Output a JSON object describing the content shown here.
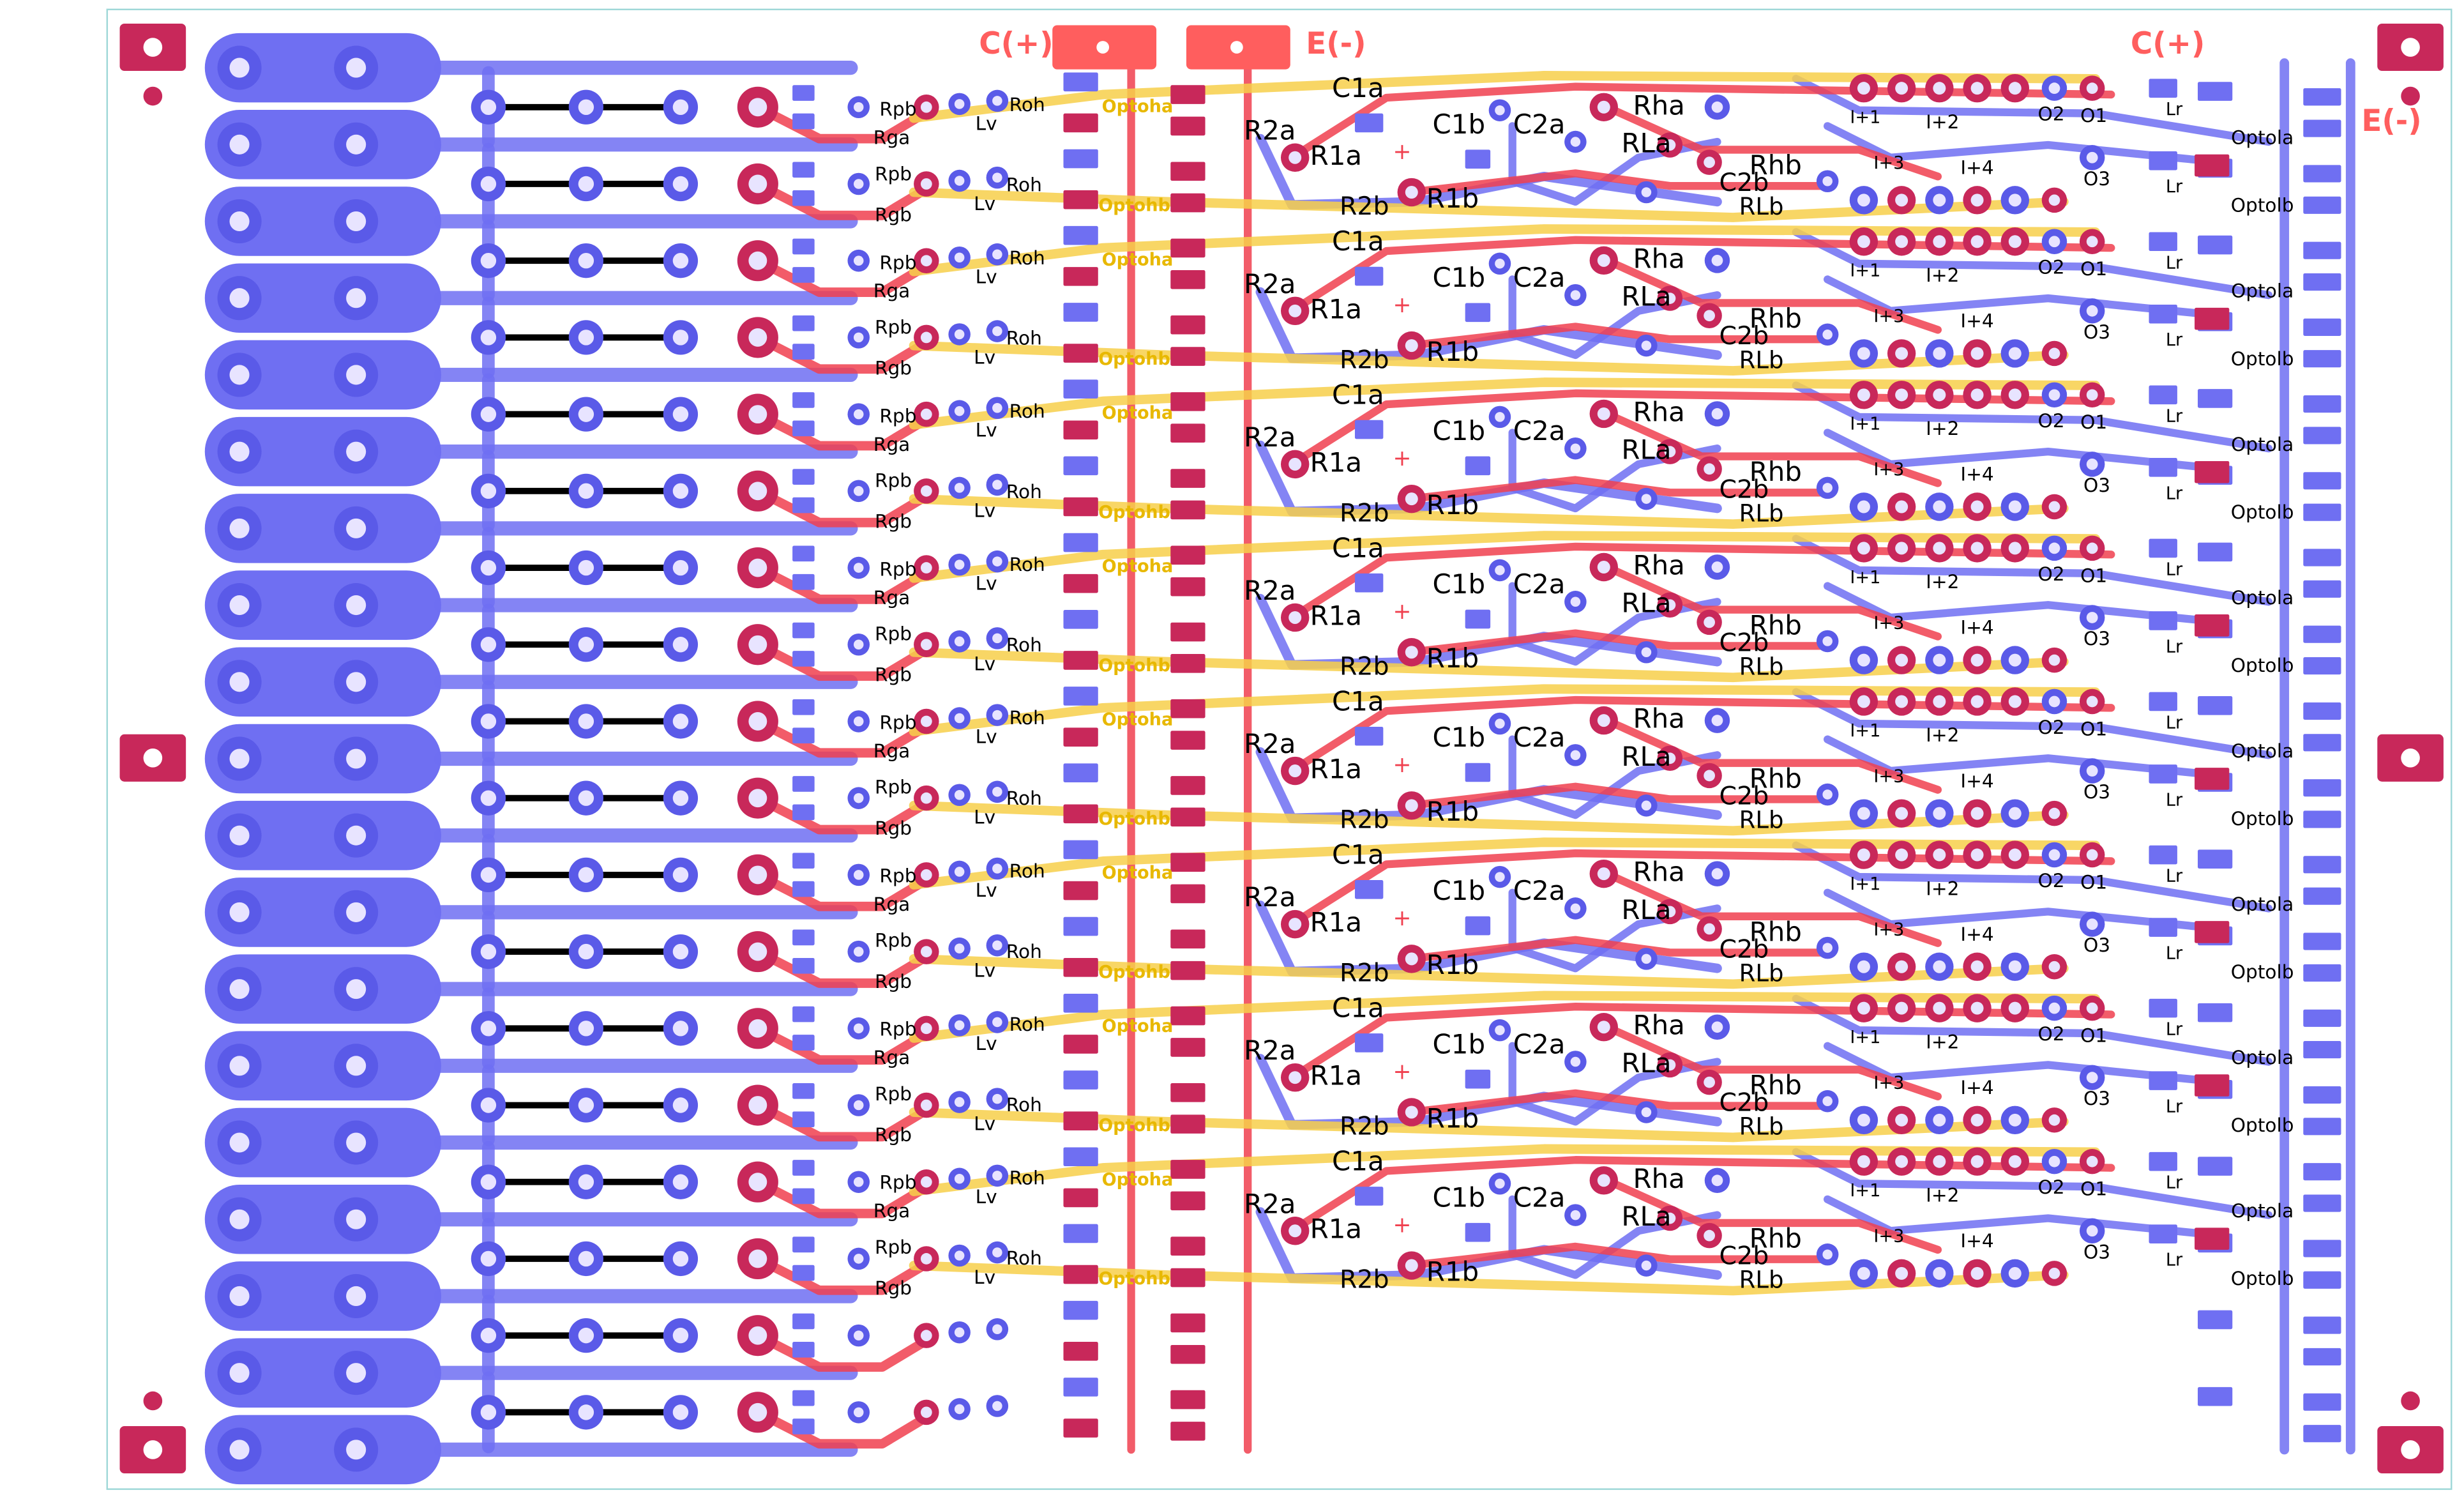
{
  "header": {
    "connector_left": "C(+)",
    "connector_mid": "E(-)",
    "connector_right": "C(+)",
    "connector_far_right": "E(-)"
  },
  "module_labels": {
    "rpb": "Rpb",
    "rga": "Rga",
    "rgb": "Rgb",
    "roh": "Roh",
    "lv": "Lv",
    "optoha": "Optoha",
    "optohb": "Optohb",
    "r2a": "R2a",
    "r1a": "R1a",
    "c1a": "C1a",
    "r2b": "R2b",
    "c1b": "C1b",
    "r1b": "R1b",
    "c2a": "C2a",
    "rha": "Rha",
    "rla": "RLa",
    "rhb": "Rhb",
    "c2b": "C2b",
    "rlb": "RLb",
    "i1": "I+1",
    "i2": "I+2",
    "i3": "I+3",
    "i4": "I+4",
    "o1": "O1",
    "o2": "O2",
    "o3": "O3",
    "lr": "Lr",
    "optola": "Optola",
    "optolb": "Optolb"
  }
}
